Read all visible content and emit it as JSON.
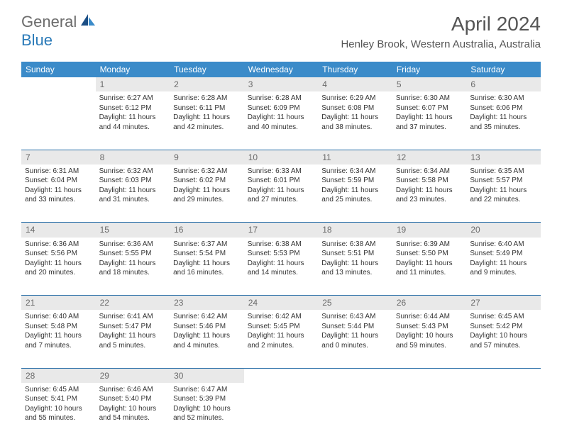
{
  "logo": {
    "part1": "General",
    "part2": "Blue"
  },
  "title": "April 2024",
  "location": "Henley Brook, Western Australia, Australia",
  "colors": {
    "header_bg": "#3b8bc9",
    "header_text": "#ffffff",
    "daynum_bg": "#e9e9e9",
    "daynum_text": "#6a6a6a",
    "body_text": "#333333",
    "rule": "#2a6fa8",
    "logo_gray": "#6b6b6b",
    "logo_blue": "#2a7ab8"
  },
  "dayNames": [
    "Sunday",
    "Monday",
    "Tuesday",
    "Wednesday",
    "Thursday",
    "Friday",
    "Saturday"
  ],
  "weeks": [
    [
      null,
      {
        "n": "1",
        "sunrise": "Sunrise: 6:27 AM",
        "sunset": "Sunset: 6:12 PM",
        "day1": "Daylight: 11 hours",
        "day2": "and 44 minutes."
      },
      {
        "n": "2",
        "sunrise": "Sunrise: 6:28 AM",
        "sunset": "Sunset: 6:11 PM",
        "day1": "Daylight: 11 hours",
        "day2": "and 42 minutes."
      },
      {
        "n": "3",
        "sunrise": "Sunrise: 6:28 AM",
        "sunset": "Sunset: 6:09 PM",
        "day1": "Daylight: 11 hours",
        "day2": "and 40 minutes."
      },
      {
        "n": "4",
        "sunrise": "Sunrise: 6:29 AM",
        "sunset": "Sunset: 6:08 PM",
        "day1": "Daylight: 11 hours",
        "day2": "and 38 minutes."
      },
      {
        "n": "5",
        "sunrise": "Sunrise: 6:30 AM",
        "sunset": "Sunset: 6:07 PM",
        "day1": "Daylight: 11 hours",
        "day2": "and 37 minutes."
      },
      {
        "n": "6",
        "sunrise": "Sunrise: 6:30 AM",
        "sunset": "Sunset: 6:06 PM",
        "day1": "Daylight: 11 hours",
        "day2": "and 35 minutes."
      }
    ],
    [
      {
        "n": "7",
        "sunrise": "Sunrise: 6:31 AM",
        "sunset": "Sunset: 6:04 PM",
        "day1": "Daylight: 11 hours",
        "day2": "and 33 minutes."
      },
      {
        "n": "8",
        "sunrise": "Sunrise: 6:32 AM",
        "sunset": "Sunset: 6:03 PM",
        "day1": "Daylight: 11 hours",
        "day2": "and 31 minutes."
      },
      {
        "n": "9",
        "sunrise": "Sunrise: 6:32 AM",
        "sunset": "Sunset: 6:02 PM",
        "day1": "Daylight: 11 hours",
        "day2": "and 29 minutes."
      },
      {
        "n": "10",
        "sunrise": "Sunrise: 6:33 AM",
        "sunset": "Sunset: 6:01 PM",
        "day1": "Daylight: 11 hours",
        "day2": "and 27 minutes."
      },
      {
        "n": "11",
        "sunrise": "Sunrise: 6:34 AM",
        "sunset": "Sunset: 5:59 PM",
        "day1": "Daylight: 11 hours",
        "day2": "and 25 minutes."
      },
      {
        "n": "12",
        "sunrise": "Sunrise: 6:34 AM",
        "sunset": "Sunset: 5:58 PM",
        "day1": "Daylight: 11 hours",
        "day2": "and 23 minutes."
      },
      {
        "n": "13",
        "sunrise": "Sunrise: 6:35 AM",
        "sunset": "Sunset: 5:57 PM",
        "day1": "Daylight: 11 hours",
        "day2": "and 22 minutes."
      }
    ],
    [
      {
        "n": "14",
        "sunrise": "Sunrise: 6:36 AM",
        "sunset": "Sunset: 5:56 PM",
        "day1": "Daylight: 11 hours",
        "day2": "and 20 minutes."
      },
      {
        "n": "15",
        "sunrise": "Sunrise: 6:36 AM",
        "sunset": "Sunset: 5:55 PM",
        "day1": "Daylight: 11 hours",
        "day2": "and 18 minutes."
      },
      {
        "n": "16",
        "sunrise": "Sunrise: 6:37 AM",
        "sunset": "Sunset: 5:54 PM",
        "day1": "Daylight: 11 hours",
        "day2": "and 16 minutes."
      },
      {
        "n": "17",
        "sunrise": "Sunrise: 6:38 AM",
        "sunset": "Sunset: 5:53 PM",
        "day1": "Daylight: 11 hours",
        "day2": "and 14 minutes."
      },
      {
        "n": "18",
        "sunrise": "Sunrise: 6:38 AM",
        "sunset": "Sunset: 5:51 PM",
        "day1": "Daylight: 11 hours",
        "day2": "and 13 minutes."
      },
      {
        "n": "19",
        "sunrise": "Sunrise: 6:39 AM",
        "sunset": "Sunset: 5:50 PM",
        "day1": "Daylight: 11 hours",
        "day2": "and 11 minutes."
      },
      {
        "n": "20",
        "sunrise": "Sunrise: 6:40 AM",
        "sunset": "Sunset: 5:49 PM",
        "day1": "Daylight: 11 hours",
        "day2": "and 9 minutes."
      }
    ],
    [
      {
        "n": "21",
        "sunrise": "Sunrise: 6:40 AM",
        "sunset": "Sunset: 5:48 PM",
        "day1": "Daylight: 11 hours",
        "day2": "and 7 minutes."
      },
      {
        "n": "22",
        "sunrise": "Sunrise: 6:41 AM",
        "sunset": "Sunset: 5:47 PM",
        "day1": "Daylight: 11 hours",
        "day2": "and 5 minutes."
      },
      {
        "n": "23",
        "sunrise": "Sunrise: 6:42 AM",
        "sunset": "Sunset: 5:46 PM",
        "day1": "Daylight: 11 hours",
        "day2": "and 4 minutes."
      },
      {
        "n": "24",
        "sunrise": "Sunrise: 6:42 AM",
        "sunset": "Sunset: 5:45 PM",
        "day1": "Daylight: 11 hours",
        "day2": "and 2 minutes."
      },
      {
        "n": "25",
        "sunrise": "Sunrise: 6:43 AM",
        "sunset": "Sunset: 5:44 PM",
        "day1": "Daylight: 11 hours",
        "day2": "and 0 minutes."
      },
      {
        "n": "26",
        "sunrise": "Sunrise: 6:44 AM",
        "sunset": "Sunset: 5:43 PM",
        "day1": "Daylight: 10 hours",
        "day2": "and 59 minutes."
      },
      {
        "n": "27",
        "sunrise": "Sunrise: 6:45 AM",
        "sunset": "Sunset: 5:42 PM",
        "day1": "Daylight: 10 hours",
        "day2": "and 57 minutes."
      }
    ],
    [
      {
        "n": "28",
        "sunrise": "Sunrise: 6:45 AM",
        "sunset": "Sunset: 5:41 PM",
        "day1": "Daylight: 10 hours",
        "day2": "and 55 minutes."
      },
      {
        "n": "29",
        "sunrise": "Sunrise: 6:46 AM",
        "sunset": "Sunset: 5:40 PM",
        "day1": "Daylight: 10 hours",
        "day2": "and 54 minutes."
      },
      {
        "n": "30",
        "sunrise": "Sunrise: 6:47 AM",
        "sunset": "Sunset: 5:39 PM",
        "day1": "Daylight: 10 hours",
        "day2": "and 52 minutes."
      },
      null,
      null,
      null,
      null
    ]
  ]
}
